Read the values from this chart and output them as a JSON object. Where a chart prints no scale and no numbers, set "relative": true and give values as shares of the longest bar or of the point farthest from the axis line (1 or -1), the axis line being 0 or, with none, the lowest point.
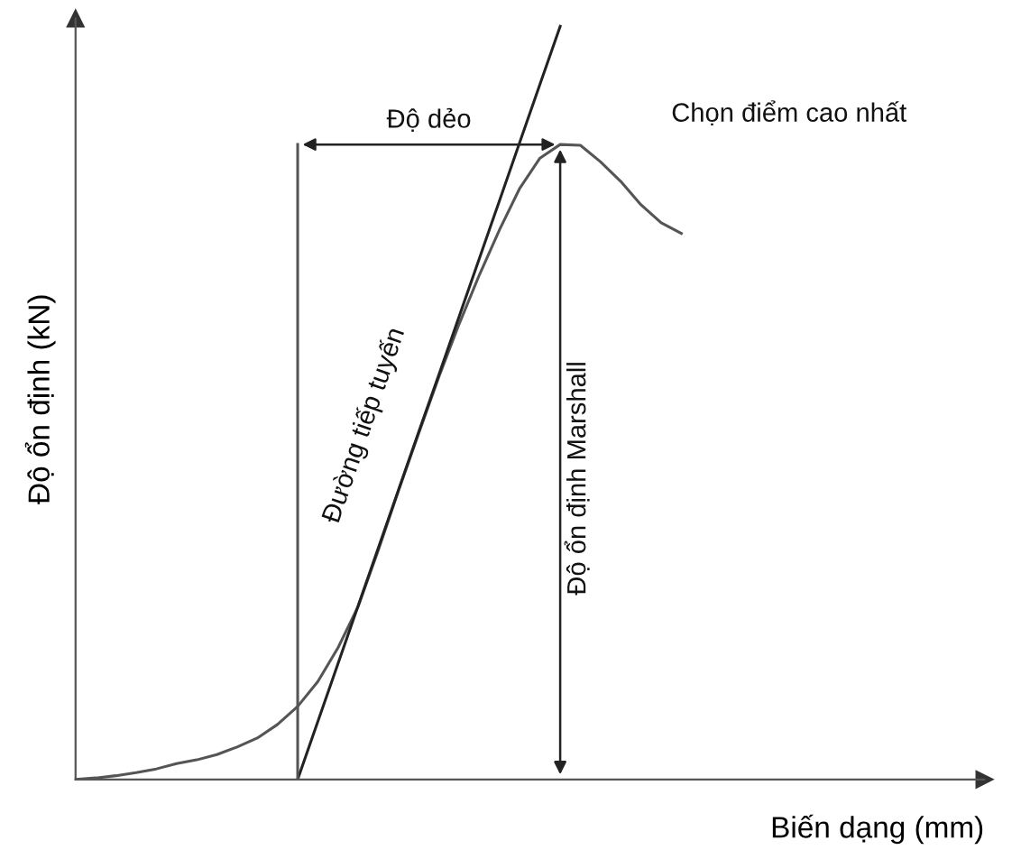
{
  "chart_data": {
    "type": "line",
    "relative": true,
    "xlabel": "Biến dạng (mm)",
    "ylabel": "Độ ổn định (kN)",
    "categories": [
      null,
      null,
      null,
      null,
      null,
      null,
      null,
      null,
      null,
      null,
      null,
      null,
      null,
      null,
      null,
      null,
      null,
      null,
      null,
      null,
      null,
      null,
      null,
      null,
      null,
      null,
      null,
      null,
      null,
      null,
      null,
      null,
      null,
      null,
      null,
      null,
      null,
      null,
      null,
      null,
      null,
      null,
      null,
      null,
      null,
      null
    ],
    "series": [
      {
        "color": "#555555",
        "values": [
          0,
          0.002,
          0.005,
          0.009,
          0.014,
          0.021,
          0.026,
          0.033,
          0.043,
          0.055,
          0.073,
          0.097,
          0.13,
          0.175,
          0.23,
          0.305,
          0.384,
          0.46,
          0.535,
          0.605,
          0.67,
          0.73,
          0.785,
          0.825,
          0.843,
          0.842,
          0.82,
          0.794,
          0.763,
          0.739,
          0.725,
          null,
          null,
          null,
          null,
          null,
          null,
          null,
          null,
          null,
          null,
          null,
          null,
          null,
          null,
          null
        ]
      },
      {
        "color": "#222222",
        "values": [
          null,
          null,
          null,
          null,
          null,
          null,
          null,
          null,
          null,
          null,
          null,
          0,
          0.077,
          0.154,
          0.231,
          0.308,
          0.385,
          0.462,
          0.538,
          0.615,
          0.692,
          0.769,
          0.846,
          0.923,
          1,
          null,
          null,
          null,
          null,
          null,
          null,
          null,
          null,
          null,
          null,
          null,
          null,
          null,
          null,
          null,
          null,
          null,
          null,
          null,
          null,
          null
        ]
      }
    ],
    "annotations": [
      "Độ dẻo",
      "Chọn điểm cao nhất",
      "Đường tiếp tuyến",
      "Độ ổn định Marshall"
    ],
    "marker": "none",
    "line_style": "solid",
    "grid": false,
    "legend": false
  }
}
